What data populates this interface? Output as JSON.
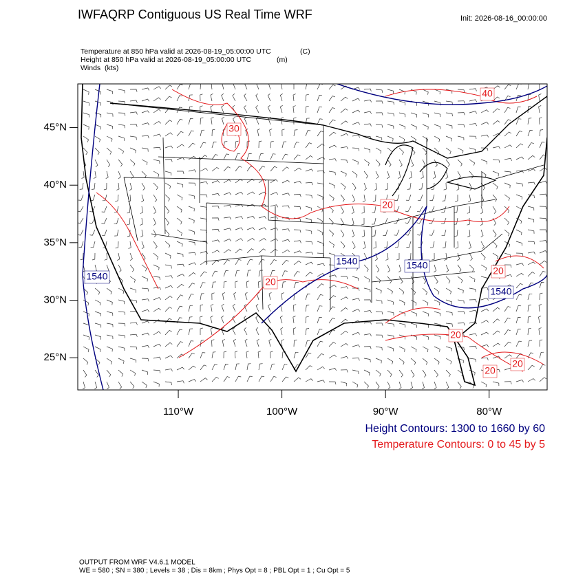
{
  "header": {
    "title": "IWFAQRP Contiguous US Real Time WRF",
    "init": "Init: 2026-08-16_00:00:00",
    "fields": [
      {
        "text": "Temperature at 850 hPa valid at 2026-08-19_05:00:00 UTC",
        "units": "(C)"
      },
      {
        "text": "Height at 850 hPa valid at 2026-08-19_05:00:00 UTC",
        "units": "(m)"
      },
      {
        "text": "Winds",
        "units": "(kts)"
      }
    ]
  },
  "map": {
    "xlim": [
      -119.7,
      -74.4
    ],
    "ylim": [
      22.2,
      48.8
    ],
    "yticks": [
      {
        "value": 45,
        "label": "45°N"
      },
      {
        "value": 40,
        "label": "40°N"
      },
      {
        "value": 35,
        "label": "35°N"
      },
      {
        "value": 30,
        "label": "30°N"
      },
      {
        "value": 25,
        "label": "25°N"
      }
    ],
    "xticks": [
      {
        "value": -110,
        "label": "110°W"
      },
      {
        "value": -100,
        "label": "100°W"
      },
      {
        "value": -90,
        "label": "90°W"
      },
      {
        "value": -80,
        "label": "80°W"
      }
    ],
    "temperature_labels": [
      "30",
      "40",
      "20",
      "20",
      "20",
      "20",
      "20",
      "20"
    ],
    "height_labels": [
      "1540",
      "1540",
      "1540",
      "1540"
    ],
    "temperature_color": "#e41a1c",
    "height_color": "#00007f"
  },
  "legend": {
    "height": "Height Contours: 1300 to 1660 by 60",
    "temperature": "Temperature Contours: 0 to 45 by 5"
  },
  "footer": {
    "model": "OUTPUT FROM WRF V4.6.1 MODEL",
    "settings": "WE = 580 ; SN = 380 ; Levels = 38 ; Dis = 8km ; Phys Opt = 8 ; PBL Opt = 1 ; Cu Opt = 5"
  }
}
